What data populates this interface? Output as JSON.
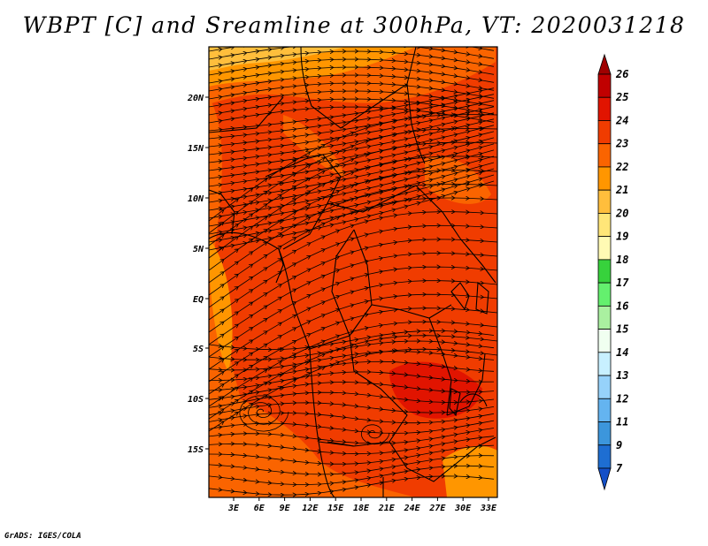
{
  "title": "WBPT [C] and Sreamline at 300hPa, VT: 2020031218",
  "credit": "GrADS: IGES/COLA",
  "map": {
    "lat_labels": [
      "20N",
      "15N",
      "10N",
      "5N",
      "EQ",
      "5S",
      "10S",
      "15S"
    ],
    "lon_labels": [
      "3E",
      "6E",
      "9E",
      "12E",
      "15E",
      "18E",
      "21E",
      "24E",
      "27E",
      "30E",
      "33E"
    ]
  },
  "colorbar": {
    "labels": [
      "26",
      "25",
      "24",
      "23",
      "22",
      "21",
      "20",
      "19",
      "18",
      "17",
      "16",
      "15",
      "14",
      "13",
      "12",
      "11",
      "9",
      "7"
    ],
    "colors": [
      "#a00000",
      "#c00000",
      "#e11400",
      "#f03c00",
      "#fa6400",
      "#ff9600",
      "#ffbe3c",
      "#ffe678",
      "#fffab4",
      "#37d23c",
      "#64f06e",
      "#aaf0a0",
      "#f0fff0",
      "#c8f0ff",
      "#96d2fa",
      "#64b4f0",
      "#3c96dc",
      "#1e6ed2",
      "#1450c8"
    ]
  }
}
